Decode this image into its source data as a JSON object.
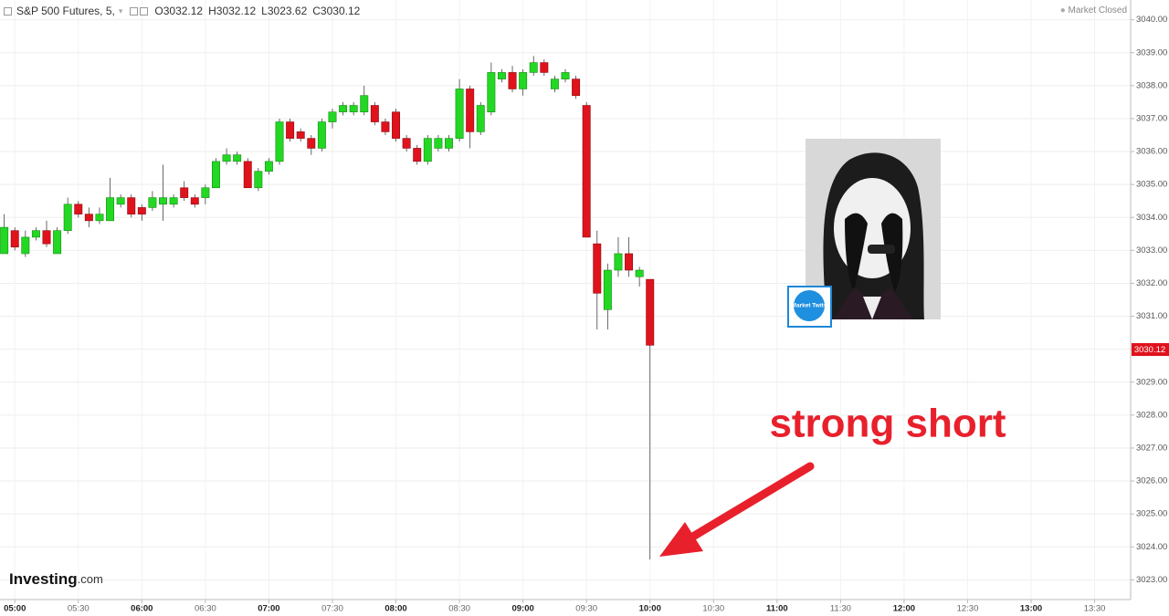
{
  "chart_data": {
    "type": "candlestick",
    "title": "S&P 500 Futures, 5,",
    "ohlc_labels": [
      "O",
      "H",
      "L",
      "C"
    ],
    "status": "Market Closed",
    "brand": "Investing",
    "brand_suffix": ".com",
    "annotation": "strong short",
    "badge_text": "Market Twits",
    "up_color": "#22d822",
    "down_color": "#e0121c",
    "grid": true,
    "x": [
      295,
      300,
      305,
      310,
      315,
      320,
      325,
      330,
      335,
      340,
      345,
      350,
      355,
      360,
      365,
      370,
      375,
      380,
      385,
      390,
      395,
      400,
      405,
      410,
      415,
      420,
      425,
      430,
      435,
      440,
      445,
      450,
      455,
      460,
      465,
      470,
      475,
      480,
      485,
      490,
      495,
      500,
      505,
      510,
      515,
      520,
      525,
      530,
      535,
      540,
      545,
      550,
      555,
      560,
      565,
      570,
      575,
      580,
      585,
      590,
      595,
      600
    ],
    "open": [
      3032.9,
      3033.6,
      3032.9,
      3033.4,
      3033.6,
      3032.9,
      3033.6,
      3034.4,
      3034.1,
      3033.9,
      3033.9,
      3034.4,
      3034.6,
      3034.3,
      3034.3,
      3034.4,
      3034.4,
      3034.9,
      3034.6,
      3034.6,
      3034.9,
      3035.7,
      3035.7,
      3035.7,
      3034.9,
      3035.4,
      3035.7,
      3036.9,
      3036.6,
      3036.4,
      3036.1,
      3036.9,
      3037.2,
      3037.2,
      3037.2,
      3037.4,
      3036.9,
      3037.2,
      3036.4,
      3036.1,
      3035.7,
      3036.1,
      3036.1,
      3036.4,
      3037.9,
      3036.6,
      3037.2,
      3038.2,
      3038.4,
      3037.9,
      3038.4,
      3038.7,
      3037.9,
      3038.2,
      3038.2,
      3037.4,
      3033.2,
      3031.2,
      3032.4,
      3032.9,
      3032.2,
      3032.12
    ],
    "high": [
      3034.1,
      3033.7,
      3033.6,
      3033.7,
      3033.9,
      3033.7,
      3034.6,
      3034.5,
      3034.3,
      3034.3,
      3035.2,
      3034.7,
      3034.7,
      3034.4,
      3034.8,
      3035.6,
      3034.7,
      3035.1,
      3034.7,
      3035.0,
      3035.8,
      3036.1,
      3036.0,
      3035.8,
      3035.5,
      3035.8,
      3037.0,
      3037.0,
      3036.7,
      3036.5,
      3037.0,
      3037.3,
      3037.5,
      3037.5,
      3038.0,
      3037.5,
      3037.0,
      3037.3,
      3036.5,
      3036.2,
      3036.5,
      3036.5,
      3036.5,
      3038.2,
      3038.0,
      3037.5,
      3038.7,
      3038.5,
      3038.6,
      3038.5,
      3038.9,
      3038.8,
      3038.3,
      3038.5,
      3038.3,
      3037.5,
      3033.6,
      3032.6,
      3033.4,
      3033.4,
      3032.5,
      3032.12
    ],
    "low": [
      3032.9,
      3033.0,
      3032.8,
      3033.3,
      3033.1,
      3032.9,
      3033.5,
      3034.0,
      3033.7,
      3033.8,
      3033.9,
      3034.3,
      3034.0,
      3033.9,
      3034.2,
      3033.9,
      3034.3,
      3034.5,
      3034.3,
      3034.4,
      3034.9,
      3035.6,
      3035.6,
      3034.9,
      3034.8,
      3035.3,
      3035.6,
      3036.3,
      3036.3,
      3035.9,
      3036.0,
      3036.7,
      3037.1,
      3037.1,
      3037.1,
      3036.8,
      3036.5,
      3036.3,
      3036.0,
      3035.6,
      3035.6,
      3036.0,
      3036.0,
      3036.3,
      3036.1,
      3036.5,
      3037.1,
      3038.1,
      3037.8,
      3037.7,
      3038.3,
      3038.3,
      3037.8,
      3038.1,
      3037.6,
      3033.4,
      3030.6,
      3030.6,
      3032.2,
      3032.2,
      3031.9,
      3023.62
    ],
    "close": [
      3033.7,
      3033.1,
      3033.4,
      3033.6,
      3033.2,
      3033.6,
      3034.4,
      3034.1,
      3033.9,
      3034.1,
      3034.6,
      3034.6,
      3034.1,
      3034.1,
      3034.6,
      3034.6,
      3034.6,
      3034.6,
      3034.4,
      3034.9,
      3035.7,
      3035.9,
      3035.9,
      3034.9,
      3035.4,
      3035.7,
      3036.9,
      3036.4,
      3036.4,
      3036.1,
      3036.9,
      3037.2,
      3037.4,
      3037.4,
      3037.7,
      3036.9,
      3036.6,
      3036.4,
      3036.1,
      3035.7,
      3036.4,
      3036.4,
      3036.4,
      3037.9,
      3036.6,
      3037.4,
      3038.4,
      3038.4,
      3037.9,
      3038.4,
      3038.7,
      3038.4,
      3038.2,
      3038.4,
      3037.7,
      3033.4,
      3031.7,
      3032.4,
      3032.9,
      3032.4,
      3032.4,
      3030.12
    ],
    "xlim": [
      293,
      827
    ],
    "xticks": [
      {
        "value": 300,
        "label": "05:00"
      },
      {
        "value": 330,
        "label": "05:30"
      },
      {
        "value": 360,
        "label": "06:00"
      },
      {
        "value": 390,
        "label": "06:30"
      },
      {
        "value": 420,
        "label": "07:00"
      },
      {
        "value": 450,
        "label": "07:30"
      },
      {
        "value": 480,
        "label": "08:00"
      },
      {
        "value": 510,
        "label": "08:30"
      },
      {
        "value": 540,
        "label": "09:00"
      },
      {
        "value": 570,
        "label": "09:30"
      },
      {
        "value": 600,
        "label": "10:00"
      },
      {
        "value": 630,
        "label": "10:30"
      },
      {
        "value": 660,
        "label": "11:00"
      },
      {
        "value": 690,
        "label": "11:30"
      },
      {
        "value": 720,
        "label": "12:00"
      },
      {
        "value": 750,
        "label": "12:30"
      },
      {
        "value": 780,
        "label": "13:00"
      },
      {
        "value": 810,
        "label": "13:30"
      }
    ],
    "ylim": [
      3022.4,
      3040.6
    ],
    "yticks": [
      {
        "value": 3023,
        "label": "3023.00"
      },
      {
        "value": 3024,
        "label": "3024.00"
      },
      {
        "value": 3025,
        "label": "3025.00"
      },
      {
        "value": 3026,
        "label": "3026.00"
      },
      {
        "value": 3027,
        "label": "3027.00"
      },
      {
        "value": 3028,
        "label": "3028.00"
      },
      {
        "value": 3029,
        "label": "3029.00"
      },
      {
        "value": 3030,
        "label": "3030.00"
      },
      {
        "value": 3031,
        "label": "3031.00"
      },
      {
        "value": 3032,
        "label": "3032.00"
      },
      {
        "value": 3033,
        "label": "3033.00"
      },
      {
        "value": 3034,
        "label": "3034.00"
      },
      {
        "value": 3035,
        "label": "3035.00"
      },
      {
        "value": 3036,
        "label": "3036.00"
      },
      {
        "value": 3037,
        "label": "3037.00"
      },
      {
        "value": 3038,
        "label": "3038.00"
      },
      {
        "value": 3039,
        "label": "3039.00"
      },
      {
        "value": 3040,
        "label": "3040.00"
      }
    ]
  }
}
